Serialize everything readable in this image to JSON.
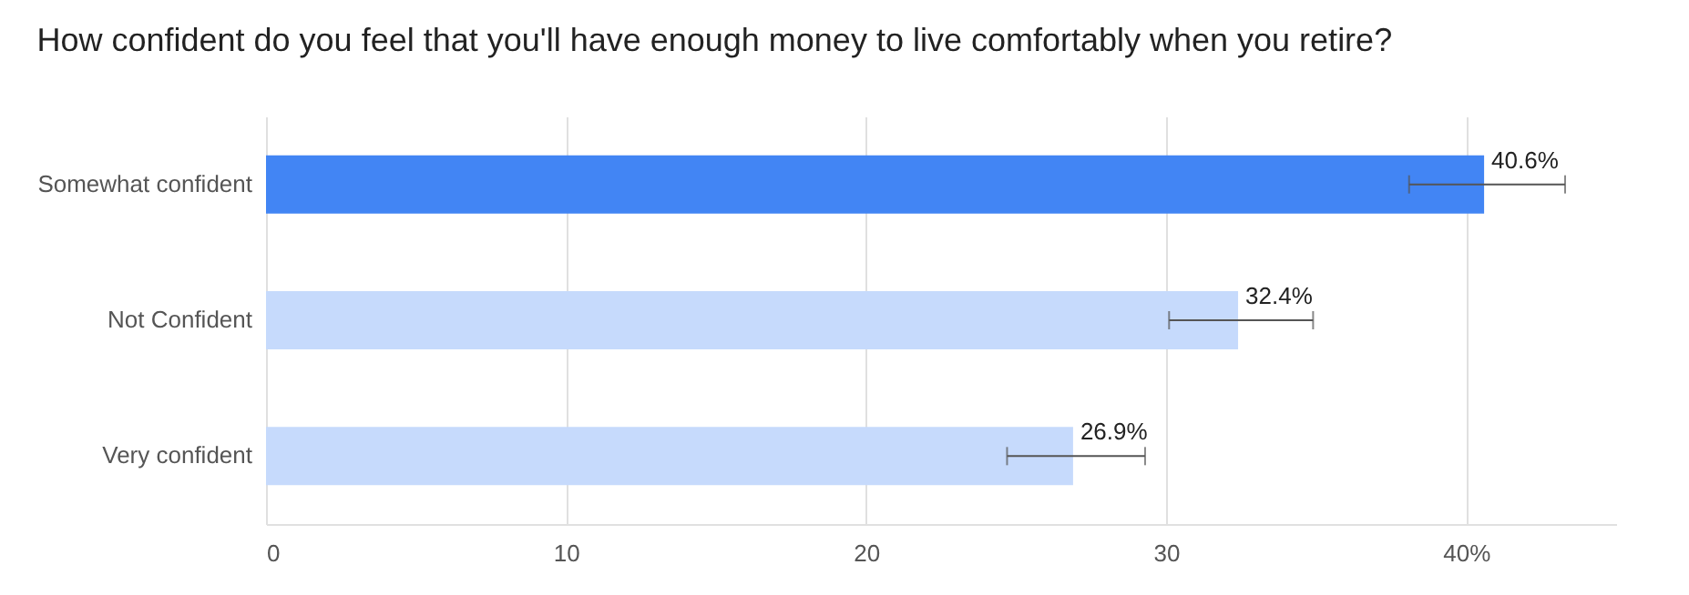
{
  "chart_data": {
    "type": "bar",
    "orientation": "horizontal",
    "title": "How confident do you feel that you'll have enough money to live comfortably when you retire?",
    "categories": [
      "Somewhat confident",
      "Not Confident",
      "Very confident"
    ],
    "values": [
      40.6,
      32.4,
      26.9
    ],
    "colors": [
      "#4285f4",
      "#c6dafc",
      "#c6dafc"
    ],
    "errors": [
      [
        38.1,
        43.3
      ],
      [
        30.1,
        34.9
      ],
      [
        24.7,
        29.3
      ]
    ],
    "value_labels": [
      "40.6%",
      "32.4%",
      "26.9%"
    ],
    "xlim": [
      0,
      45
    ],
    "xticks": [
      0,
      10,
      20,
      30,
      {
        "value": 40,
        "label": "40%"
      }
    ],
    "grid": "x"
  }
}
